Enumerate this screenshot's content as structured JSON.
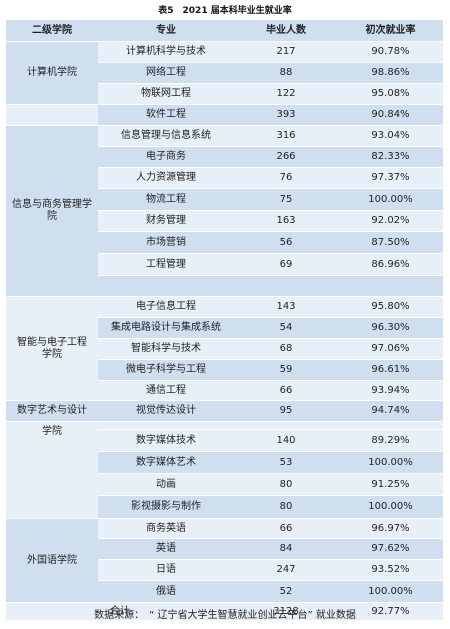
{
  "caption": "表5　2021 届本科毕业生就业率",
  "headers": [
    "二级学院",
    "专业",
    "毕业人数",
    "初次就业率"
  ],
  "colleges": [
    "计算机学院",
    "信息与商务管理学院",
    "智能与电子工程学院",
    "数字艺术与设计",
    "学院",
    "外国语学院"
  ],
  "rows": [
    {
      "major": "计算机科学与技术",
      "count": "217",
      "rate": "90.78%"
    },
    {
      "major": "网络工程",
      "count": "88",
      "rate": "98.86%"
    },
    {
      "major": "物联网工程",
      "count": "122",
      "rate": "95.08%"
    },
    {
      "major": "软件工程",
      "count": "393",
      "rate": "90.84%"
    },
    {
      "major": "信息管理与信息系统",
      "count": "316",
      "rate": "93.04%"
    },
    {
      "major": "电子商务",
      "count": "266",
      "rate": "82.33%"
    },
    {
      "major": "人力资源管理",
      "count": "76",
      "rate": "97.37%"
    },
    {
      "major": "物流工程",
      "count": "75",
      "rate": "100.00%"
    },
    {
      "major": "财务管理",
      "count": "163",
      "rate": "92.02%"
    },
    {
      "major": "市场营销",
      "count": "56",
      "rate": "87.50%"
    },
    {
      "major": "工程管理",
      "count": "69",
      "rate": "86.96%"
    },
    {
      "major": "电子信息工程",
      "count": "143",
      "rate": "95.80%"
    },
    {
      "major": "集成电路设计与集成系统",
      "count": "54",
      "rate": "96.30%"
    },
    {
      "major": "智能科学与技术",
      "count": "68",
      "rate": "97.06%"
    },
    {
      "major": "微电子科学与工程",
      "count": "59",
      "rate": "96.61%"
    },
    {
      "major": "通信工程",
      "count": "66",
      "rate": "93.94%"
    },
    {
      "major": "视觉传达设计",
      "count": "95",
      "rate": "94.74%"
    },
    {
      "major": "数字媒体技术",
      "count": "140",
      "rate": "89.29%"
    },
    {
      "major": "数字媒体艺术",
      "count": "53",
      "rate": "100.00%"
    },
    {
      "major": "动画",
      "count": "80",
      "rate": "91.25%"
    },
    {
      "major": "影视摄影与制作",
      "count": "80",
      "rate": "100.00%"
    },
    {
      "major": "商务英语",
      "count": "66",
      "rate": "96.97%"
    },
    {
      "major": "英语",
      "count": "84",
      "rate": "97.62%"
    },
    {
      "major": "日语",
      "count": "247",
      "rate": "93.52%"
    },
    {
      "major": "俄语",
      "count": "52",
      "rate": "100.00%"
    }
  ],
  "total": {
    "label": "合计",
    "count": "3128",
    "rate": "92.77%"
  },
  "footer": "数据来源：　“ 辽宁省大学生智慧就业创业云平台” 就业数据",
  "colors": {
    "dark": "#cfdff0",
    "light": "#e7eff8"
  }
}
